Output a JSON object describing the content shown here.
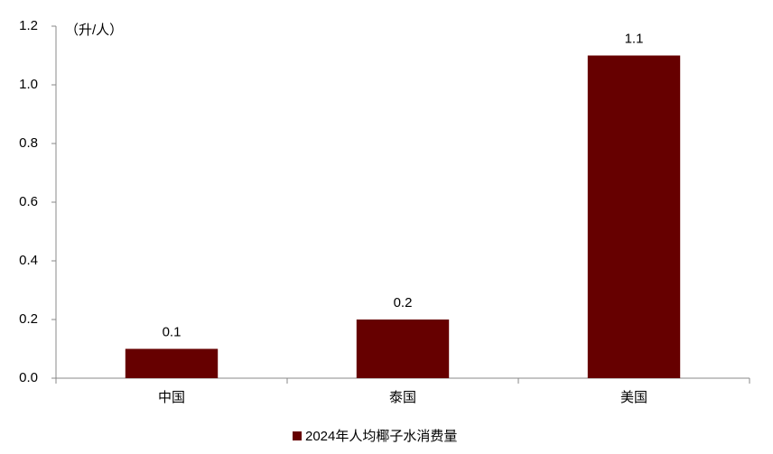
{
  "chart_data": {
    "type": "bar",
    "y_label": "（升/人）",
    "categories": [
      "中国",
      "泰国",
      "美国"
    ],
    "series": [
      {
        "name": "2024年人均椰子水消费量",
        "color": "#660000",
        "values": [
          0.1,
          0.2,
          1.1
        ]
      }
    ],
    "ylim": [
      0,
      1.2
    ],
    "yticks": [
      {
        "value": 0,
        "label": "0.0"
      },
      0.2,
      0.4,
      0.6,
      0.8,
      {
        "value": 1,
        "label": "1.0"
      },
      1.2
    ],
    "grid": false,
    "legend": "bottom"
  }
}
